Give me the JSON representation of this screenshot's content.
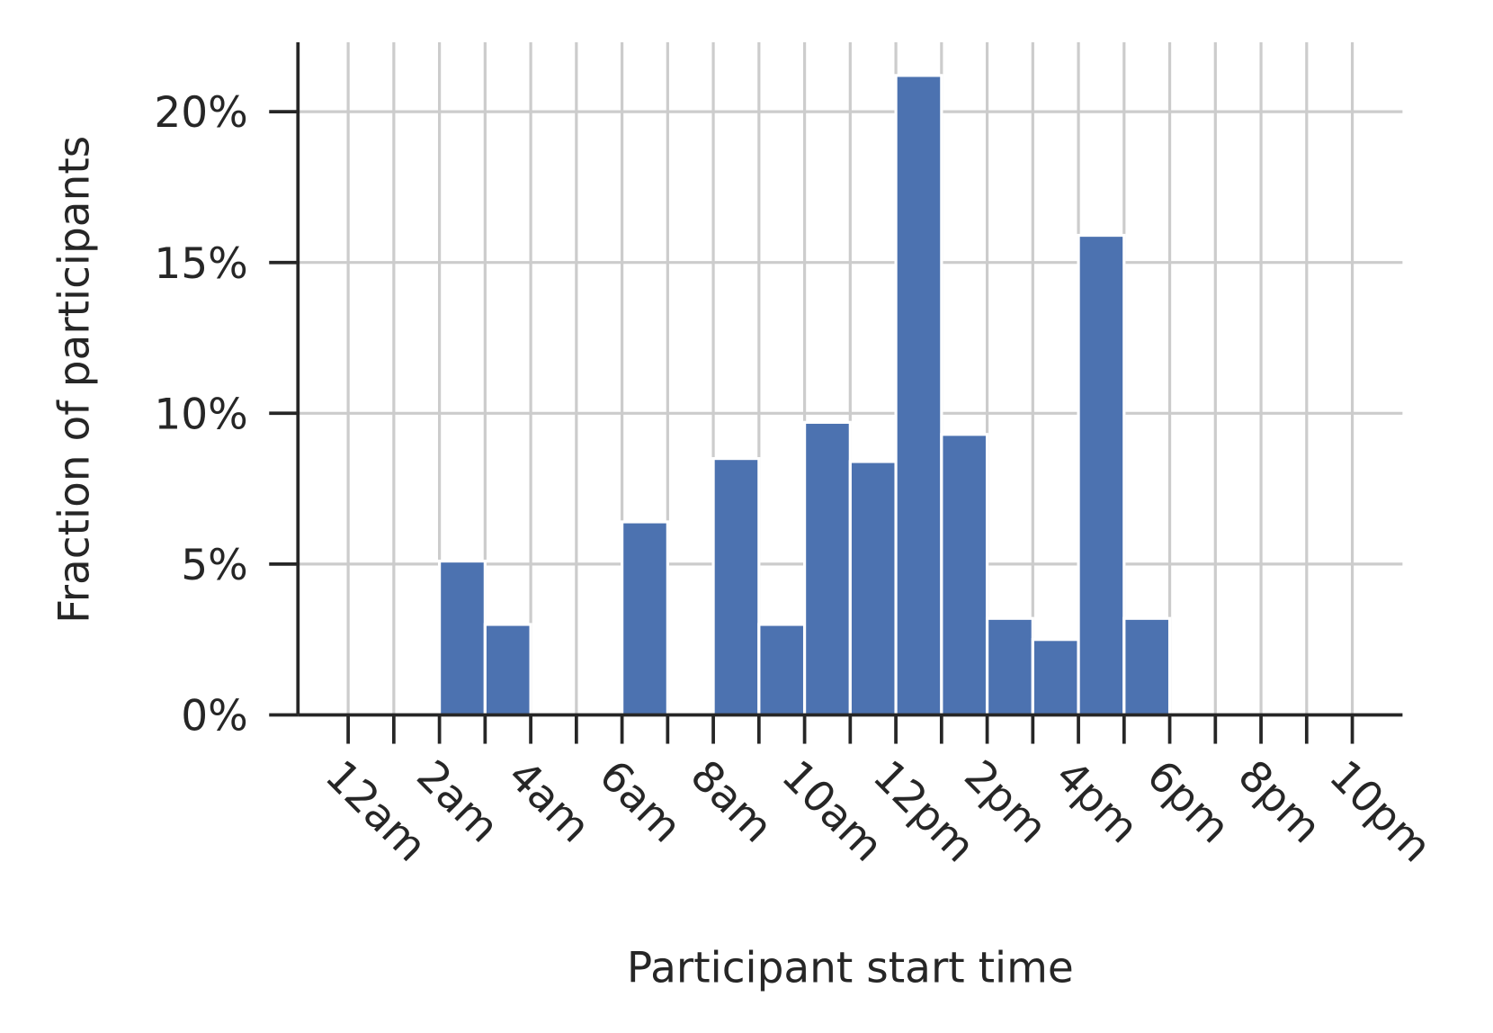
{
  "chart_data": {
    "type": "histogram",
    "xlabel": "Participant start time",
    "ylabel": "Fraction of participants",
    "bins": [
      0,
      1,
      2,
      3,
      4,
      5,
      6,
      7,
      8,
      9,
      10,
      11,
      12,
      13,
      14,
      15,
      16,
      17,
      18,
      19,
      20,
      21,
      22,
      23
    ],
    "values": [
      0,
      0,
      5.1,
      3.0,
      0,
      0,
      6.4,
      0,
      8.5,
      3.0,
      9.7,
      8.4,
      21.2,
      9.3,
      3.2,
      2.5,
      15.9,
      3.2,
      0,
      0,
      0,
      0,
      0
    ],
    "color": "#4c72b0",
    "xlim": [
      -1.1,
      23.1
    ],
    "xticks": [
      {
        "value": 0,
        "label": "12am"
      },
      {
        "value": 2,
        "label": "2am"
      },
      {
        "value": 4,
        "label": "4am"
      },
      {
        "value": 6,
        "label": "6am"
      },
      {
        "value": 8,
        "label": "8am"
      },
      {
        "value": 10,
        "label": "10am"
      },
      {
        "value": 12,
        "label": "12pm"
      },
      {
        "value": 14,
        "label": "2pm"
      },
      {
        "value": 16,
        "label": "4pm"
      },
      {
        "value": 18,
        "label": "6pm"
      },
      {
        "value": 20,
        "label": "8pm"
      },
      {
        "value": 22,
        "label": "10pm"
      }
    ],
    "xminor_ticks": [
      1,
      3,
      5,
      7,
      9,
      11,
      13,
      15,
      17,
      19,
      21
    ],
    "ylim": [
      0,
      22.3
    ],
    "yticks": [
      {
        "value": 0,
        "label": "0%"
      },
      {
        "value": 5,
        "label": "5%"
      },
      {
        "value": 10,
        "label": "10%"
      },
      {
        "value": 15,
        "label": "15%"
      },
      {
        "value": 20,
        "label": "20%"
      }
    ],
    "grid": true
  }
}
